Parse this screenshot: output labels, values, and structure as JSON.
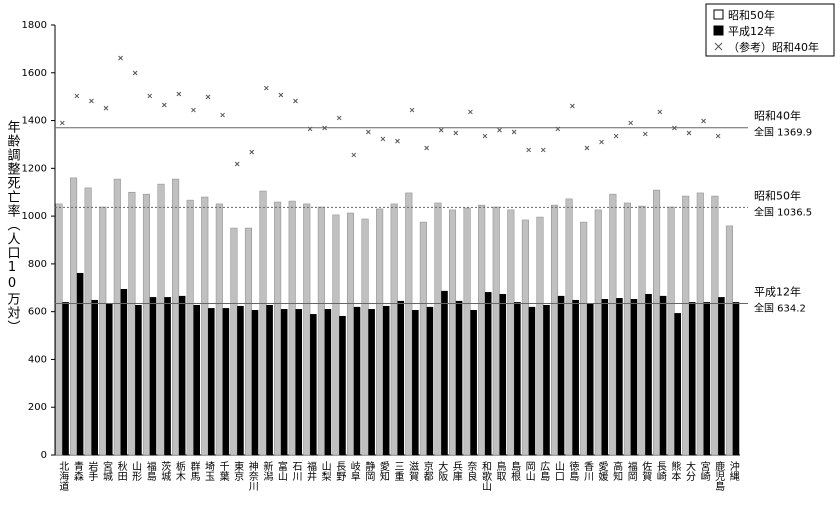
{
  "chart_data": {
    "type": "bar",
    "y_axis_label": "年齢調整死亡率（人口10万対）",
    "categories": [
      "北海道",
      "青森",
      "岩手",
      "宮城",
      "秋田",
      "山形",
      "福島",
      "茨城",
      "栃木",
      "群馬",
      "埼玉",
      "千葉",
      "東京",
      "神奈川",
      "新潟",
      "富山",
      "石川",
      "福井",
      "山梨",
      "長野",
      "岐阜",
      "静岡",
      "愛知",
      "三重",
      "滋賀",
      "京都",
      "大阪",
      "兵庫",
      "奈良",
      "和歌山",
      "鳥取",
      "島根",
      "岡山",
      "広島",
      "山口",
      "徳島",
      "香川",
      "愛媛",
      "高知",
      "福岡",
      "佐賀",
      "長崎",
      "熊本",
      "大分",
      "宮崎",
      "鹿児島",
      "沖縄"
    ],
    "series": [
      {
        "name": "昭和50年",
        "color": "#c0c0c0",
        "mark": "bar",
        "values": [
          1051,
          1160,
          1118,
          1038,
          1155,
          1100,
          1092,
          1134,
          1155,
          1067,
          1080,
          1051,
          950,
          950,
          1105,
          1059,
          1063,
          1051,
          1038,
          1005,
          1013,
          988,
          1030,
          1051,
          1097,
          975,
          1055,
          1026,
          1034,
          1046,
          1038,
          1026,
          984,
          996,
          1046,
          1072,
          975,
          1026,
          1092,
          1055,
          1042,
          1109,
          1038,
          1084,
          1097,
          1084,
          959
        ]
      },
      {
        "name": "平成12年",
        "color": "#000000",
        "mark": "bar",
        "values": [
          640,
          762,
          649,
          636,
          695,
          628,
          661,
          661,
          666,
          628,
          615,
          615,
          624,
          607,
          628,
          611,
          611,
          590,
          611,
          582,
          620,
          611,
          624,
          645,
          607,
          620,
          687,
          645,
          607,
          682,
          674,
          640,
          620,
          628,
          666,
          649,
          636,
          653,
          657,
          653,
          674,
          666,
          594,
          640,
          640,
          661,
          640
        ]
      },
      {
        "name": "（参考）昭和40年",
        "color": "#555555",
        "mark": "cross",
        "values": [
          1390,
          1503,
          1482,
          1452,
          1662,
          1599,
          1503,
          1465,
          1511,
          1444,
          1499,
          1423,
          1218,
          1268,
          1536,
          1507,
          1482,
          1365,
          1369,
          1411,
          1256,
          1352,
          1323,
          1314,
          1444,
          1285,
          1360,
          1348,
          1436,
          1335,
          1360,
          1352,
          1277,
          1277,
          1365,
          1461,
          1285,
          1310,
          1335,
          1390,
          1344,
          1436,
          1369,
          1348,
          1398,
          1335,
          null
        ]
      }
    ],
    "reference_lines": [
      {
        "name": "昭和40年",
        "value": 1369.9,
        "label": "全国 1369.9",
        "style": "solid"
      },
      {
        "name": "昭和50年",
        "value": 1036.5,
        "label": "全国 1036.5",
        "style": "dotted"
      },
      {
        "name": "平成12年",
        "value": 634.2,
        "label": "全国 634.2",
        "style": "solid"
      }
    ],
    "ylim": [
      0,
      1800
    ],
    "yticks": [
      0,
      200,
      400,
      600,
      800,
      1000,
      1200,
      1400,
      1600,
      1800
    ],
    "grid": false,
    "legend": "top-right"
  }
}
